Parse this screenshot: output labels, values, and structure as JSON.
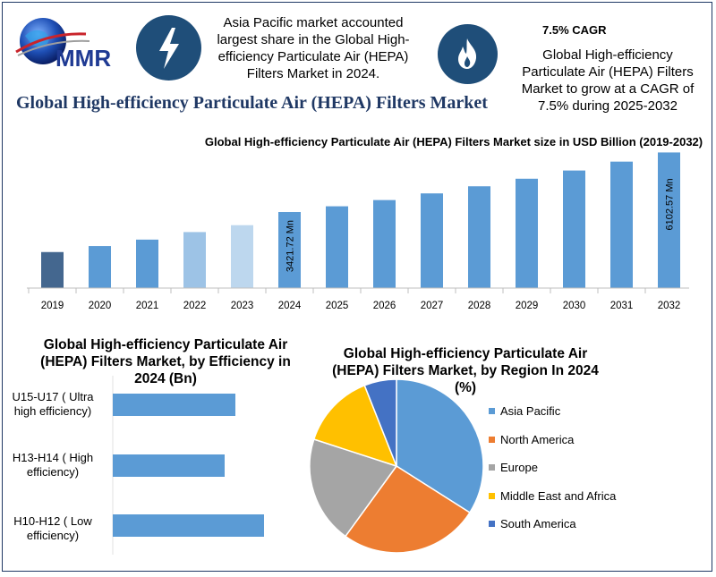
{
  "logo": {
    "text": "MMR"
  },
  "header": {
    "note_left": "Asia Pacific market accounted largest share in the Global High-efficiency Particulate Air (HEPA) Filters Market in 2024.",
    "cagr_title": "7.5% CAGR",
    "cagr_text": "Global High-efficiency Particulate Air (HEPA) Filters Market to grow at a CAGR of 7.5% during 2025-2032",
    "icon_left": "lightning-icon",
    "icon_right": "flame-icon"
  },
  "main_title": "Global High-efficiency Particulate Air (HEPA) Filters Market",
  "colors": {
    "title_blue": "#1f3864",
    "bar_blue": "#5b9bd5",
    "bar_dark": "#44678f",
    "bar_light": "#9dc3e6",
    "bar_lighter": "#bdd7ee",
    "icon_bg": "#1f4e79"
  },
  "chart_data": [
    {
      "type": "bar",
      "title": "Global High-efficiency Particulate Air (HEPA) Filters Market size in USD Billion (2019-2032)",
      "categories": [
        "2019",
        "2020",
        "2021",
        "2022",
        "2023",
        "2024",
        "2025",
        "2026",
        "2027",
        "2028",
        "2029",
        "2030",
        "2031",
        "2032"
      ],
      "values": [
        1620,
        1890,
        2180,
        2520,
        2830,
        3421.72,
        3680,
        3960,
        4260,
        4580,
        4920,
        5290,
        5690,
        6102.57
      ],
      "data_labels": {
        "2024": "3421.72 Mn",
        "2032": "6102.57 Mn"
      },
      "ylim": [
        0,
        6200
      ],
      "grid": false
    },
    {
      "type": "bar",
      "orientation": "horizontal",
      "title": "Global High-efficiency Particulate Air (HEPA) Filters Market, by Efficiency  in 2024 (Bn)",
      "categories": [
        "U15-U17 ( Ultra high efficiency)",
        "H13-H14 ( High efficiency)",
        "H10-H12 ( Low efficiency)"
      ],
      "values": [
        1.37,
        1.25,
        1.69
      ],
      "grid": false
    },
    {
      "type": "pie",
      "title": "Global High-efficiency Particulate Air (HEPA) Filters Market, by Region In 2024 (%)",
      "labels": [
        "Asia Pacific",
        "North America",
        "Europe",
        "Middle East and Africa",
        "South America"
      ],
      "values": [
        34,
        26,
        20,
        14,
        6
      ],
      "colors": [
        "#5b9bd5",
        "#ed7d31",
        "#a5a5a5",
        "#ffc000",
        "#4472c4"
      ],
      "legend_position": "right"
    }
  ]
}
